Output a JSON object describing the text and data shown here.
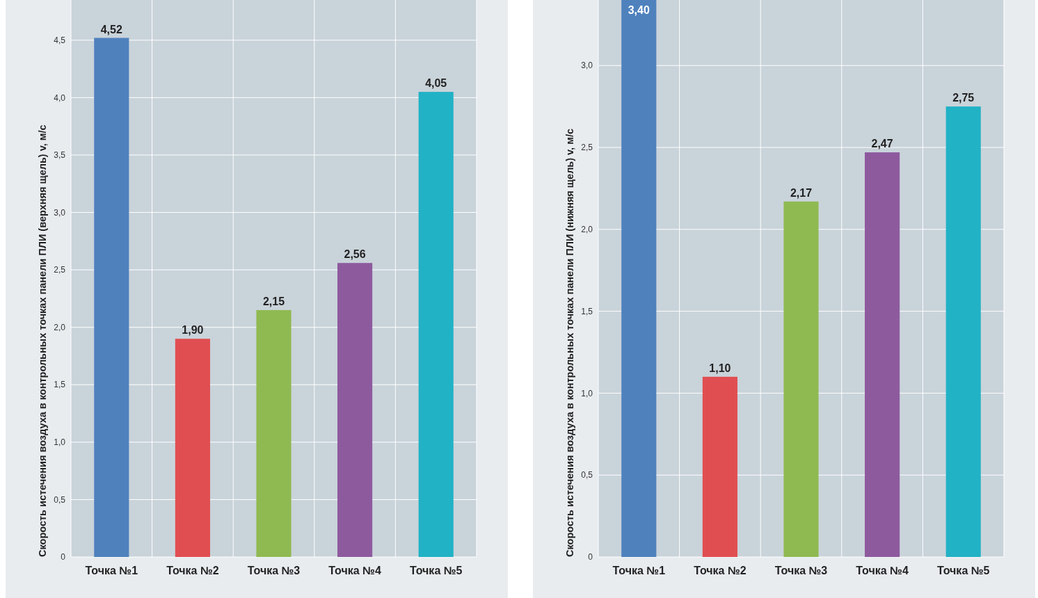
{
  "chart_data": [
    {
      "type": "bar",
      "ylabel": "Скорость истечения воздуха в контрольных точках панели ПЛИ (верхняя щель) v, м/с",
      "categories": [
        "Точка №1",
        "Точка №2",
        "Точка №3",
        "Точка №4",
        "Точка №5"
      ],
      "values": [
        4.52,
        1.9,
        2.15,
        2.56,
        4.05
      ],
      "colors": [
        "#4f81bd",
        "#e04e52",
        "#8fba52",
        "#8e5a9e",
        "#22b2c5"
      ],
      "value_labels": [
        "4,52",
        "1,90",
        "2,15",
        "2,56",
        "4,05"
      ],
      "ylim": [
        0,
        4.85
      ],
      "yticks": [
        0,
        {
          "value": 0.5,
          "label": "0,5"
        },
        {
          "value": 1,
          "label": "1,0"
        },
        {
          "value": 1.5,
          "label": "1,5"
        },
        {
          "value": 2,
          "label": "2,0"
        },
        {
          "value": 2.5,
          "label": "2,5"
        },
        {
          "value": 3,
          "label": "3,0"
        },
        {
          "value": 3.5,
          "label": "3,5"
        },
        {
          "value": 4,
          "label": "4,0"
        },
        {
          "value": 4.5,
          "label": "4,5"
        }
      ],
      "grid": true
    },
    {
      "type": "bar",
      "ylabel": "Скорость истечения воздуха в контрольных точках панели ПЛИ (нижняя щель) v, м/с",
      "categories": [
        "Точка №1",
        "Точка №2",
        "Точка №3",
        "Точка №4",
        "Точка №5"
      ],
      "values": [
        3.4,
        1.1,
        2.17,
        2.47,
        2.75
      ],
      "colors": [
        "#4f81bd",
        "#e04e52",
        "#8fba52",
        "#8e5a9e",
        "#22b2c5"
      ],
      "value_labels": [
        "3,40",
        "1,10",
        "2,17",
        "2,47",
        "2,75"
      ],
      "ylim": [
        0,
        3.4
      ],
      "yticks": [
        0,
        {
          "value": 0.5,
          "label": "0,5"
        },
        {
          "value": 1,
          "label": "1,0"
        },
        {
          "value": 1.5,
          "label": "1,5"
        },
        {
          "value": 2,
          "label": "2,0"
        },
        {
          "value": 2.5,
          "label": "2,5"
        },
        {
          "value": 3,
          "label": "3,0"
        }
      ],
      "grid": true
    }
  ]
}
